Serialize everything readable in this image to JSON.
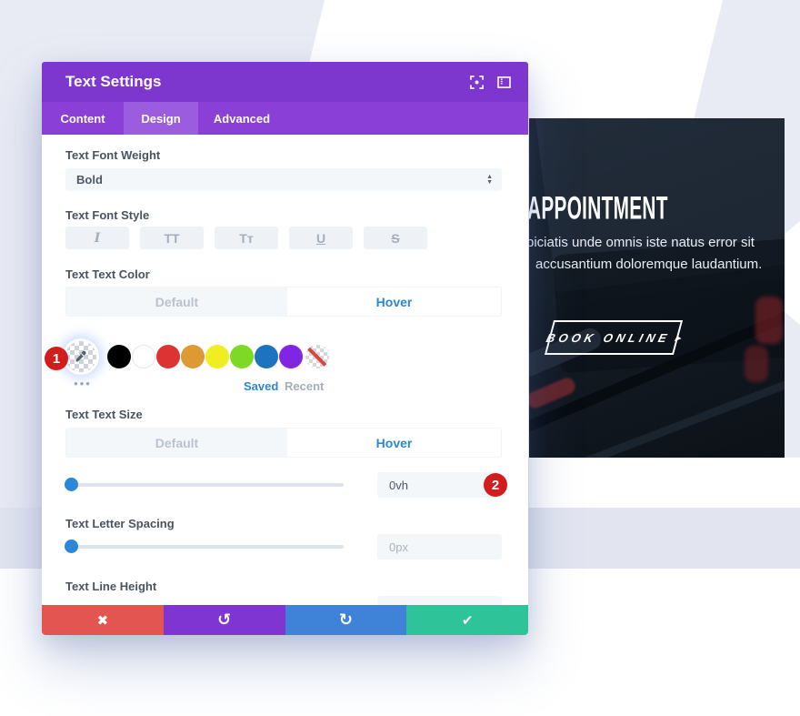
{
  "modal": {
    "title": "Text Settings",
    "header_icons": {
      "expand": "expand-modal",
      "dock": "dock-modal"
    },
    "tabs": [
      {
        "label": "Content"
      },
      {
        "label": "Design"
      },
      {
        "label": "Advanced"
      }
    ],
    "active_tab": "Design",
    "font_weight": {
      "label": "Text Font Weight",
      "value": "Bold"
    },
    "font_style": {
      "label": "Text Font Style",
      "options": [
        "I",
        "TT",
        "Tᴛ",
        "U",
        "S"
      ]
    },
    "text_color": {
      "label": "Text Text Color",
      "tab_default": "Default",
      "tab_hover": "Hover",
      "active_tab": "Hover",
      "swatches": [
        "#000000",
        "#ffffff",
        "#dd3333",
        "#dd9933",
        "#eeee22",
        "#7cda24",
        "#1e73be",
        "#8224e3"
      ],
      "more_dots": "•••",
      "saved_label": "Saved",
      "recent_label": "Recent"
    },
    "text_size": {
      "label": "Text Text Size",
      "tab_default": "Default",
      "tab_hover": "Hover",
      "active_tab": "Hover",
      "value": "0vh"
    },
    "letter_spacing": {
      "label": "Text Letter Spacing",
      "value": "0px"
    },
    "line_height": {
      "label": "Text Line Height"
    },
    "footer": {
      "close": "✖",
      "undo": "↺",
      "redo": "↻",
      "save": "✔"
    }
  },
  "annotations": {
    "one": "1",
    "two": "2"
  },
  "preview": {
    "heading": "APPOINTMENT",
    "line1": "piciatis unde omnis iste natus error sit",
    "line2": "accusantium doloremque laudantium.",
    "cta": "BOOK ONLINE",
    "cta_arrow": "▸"
  },
  "colors": {
    "accent_blue": "#2b87da",
    "header_purple": "#7d37cf",
    "tabbar_purple": "#8a3fd6",
    "active_tab_purple": "#9b5ce0",
    "footer_red": "#e25550",
    "footer_purple": "#7f35d2",
    "footer_blue": "#3e83d7",
    "footer_green": "#2fc39a",
    "annotation_red": "#d21d1d"
  }
}
